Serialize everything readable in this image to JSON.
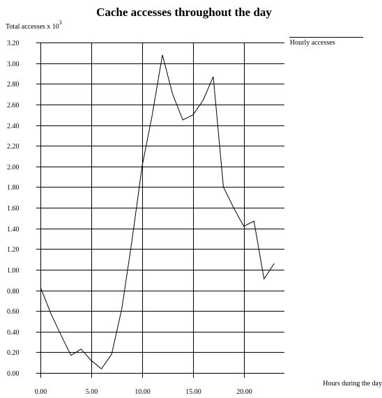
{
  "chart_data": {
    "type": "line",
    "title": "Cache accesses throughout the day",
    "ylabel": "Total accesses x 10",
    "ylabel_exponent": "3",
    "xlabel": "Hours during the day",
    "xlim": [
      0,
      24
    ],
    "ylim": [
      0,
      3.2
    ],
    "grid": true,
    "legend_position": "top-right",
    "x_ticks": [
      "0.00",
      "5.00",
      "10.00",
      "15.00",
      "20.00"
    ],
    "x_tick_values": [
      0,
      5,
      10,
      15,
      20
    ],
    "y_ticks": [
      "0.00",
      "0.20",
      "0.40",
      "0.60",
      "0.80",
      "1.00",
      "1.20",
      "1.40",
      "1.60",
      "1.80",
      "2.00",
      "2.20",
      "2.40",
      "2.60",
      "2.80",
      "3.00",
      "3.20"
    ],
    "y_tick_values": [
      0,
      0.2,
      0.4,
      0.6,
      0.8,
      1.0,
      1.2,
      1.4,
      1.6,
      1.8,
      2.0,
      2.2,
      2.4,
      2.6,
      2.8,
      3.0,
      3.2
    ],
    "series": [
      {
        "name": "Hourly accesses",
        "color": "#000000",
        "x": [
          0,
          1,
          2,
          3,
          4,
          5,
          6,
          7,
          8,
          9,
          10,
          11,
          12,
          13,
          14,
          15,
          16,
          17,
          18,
          19,
          20,
          21,
          22,
          23
        ],
        "values": [
          0.83,
          0.58,
          0.37,
          0.17,
          0.23,
          0.12,
          0.04,
          0.18,
          0.62,
          1.28,
          2.0,
          2.5,
          3.08,
          2.7,
          2.45,
          2.5,
          2.64,
          2.87,
          1.8,
          1.6,
          1.42,
          1.47,
          0.91,
          1.06
        ]
      }
    ]
  }
}
